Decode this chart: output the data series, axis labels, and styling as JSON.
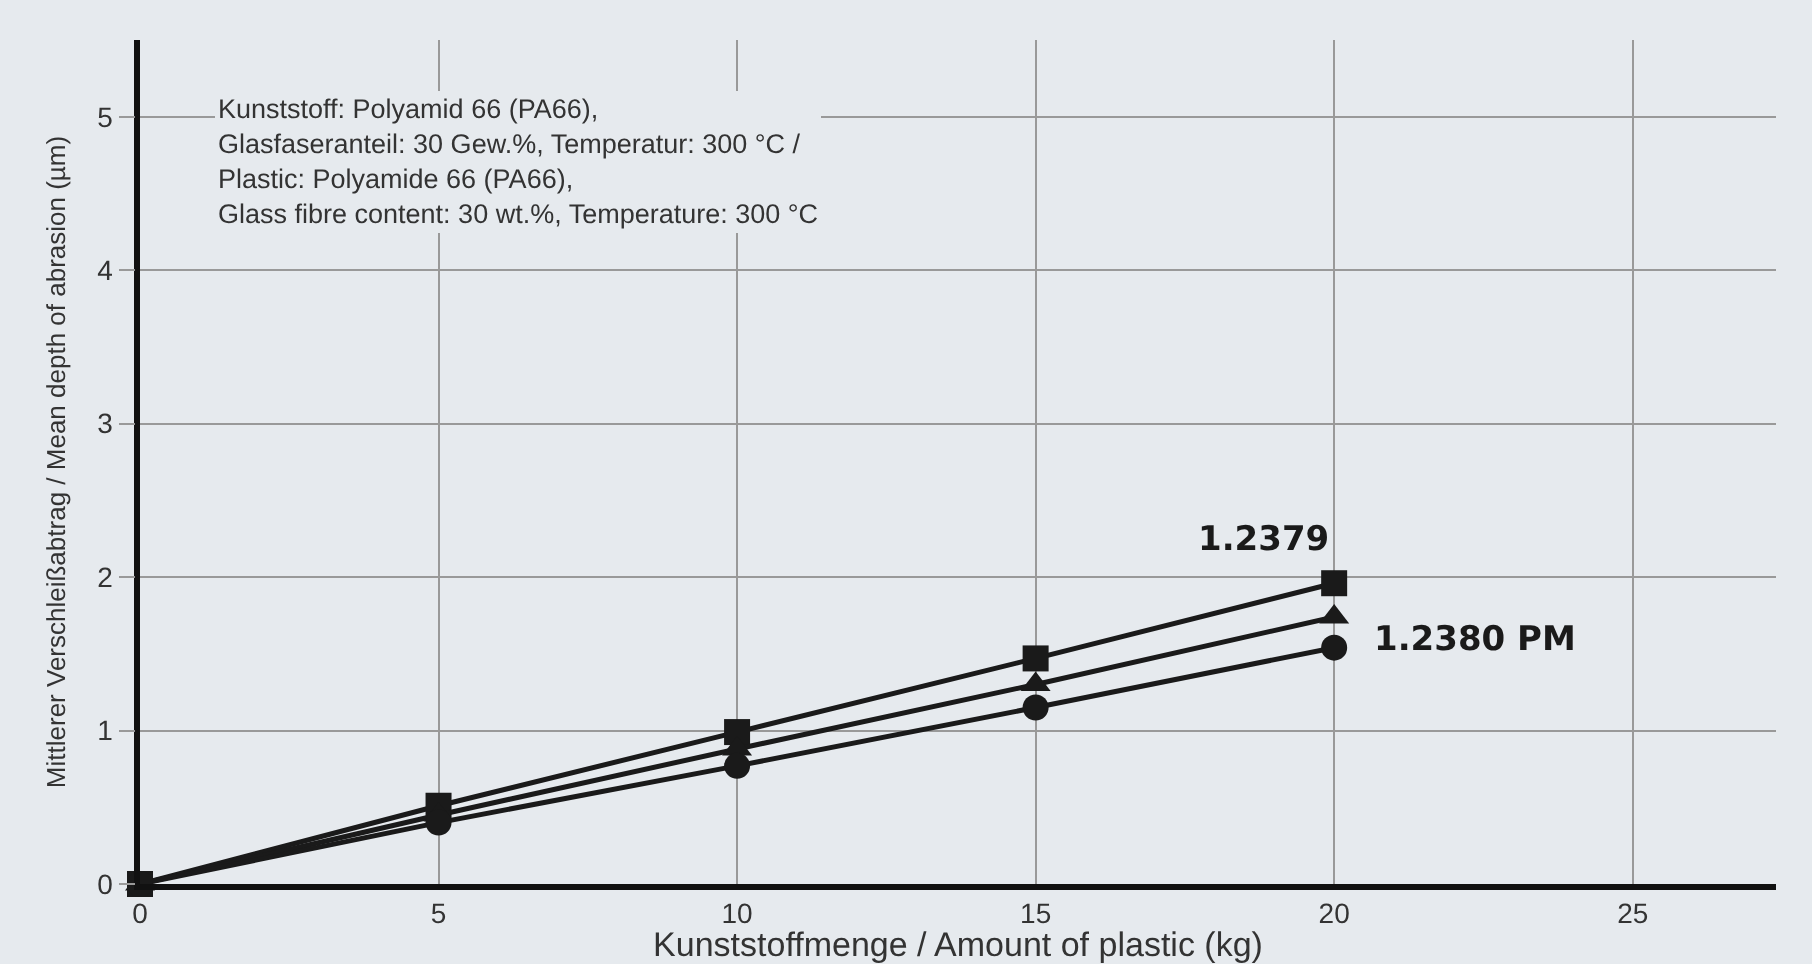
{
  "chart_data": {
    "type": "line",
    "xlabel": "Kunststoffmenge / Amount of plastic (kg)",
    "ylabel": "Mittlerer Verschleißabtrag / Mean depth of abrasion (µm)",
    "x": [
      0,
      5,
      10,
      15,
      20
    ],
    "series": [
      {
        "name": "1.2379",
        "color": "#1a1a1a",
        "marker": "square",
        "values": [
          0,
          0.51,
          0.99,
          1.47,
          1.96
        ]
      },
      {
        "name": "1.2380 PM",
        "color": "#1a1a1a",
        "marker": "triangle",
        "values": [
          0,
          0.45,
          0.88,
          1.3,
          1.74
        ]
      },
      {
        "color": "#1a1a1a",
        "marker": "circle",
        "values": [
          0,
          0.4,
          0.77,
          1.15,
          1.54
        ]
      }
    ],
    "xlim": [
      0,
      27.4
    ],
    "xticks": [
      0,
      5,
      10,
      15,
      20,
      25
    ],
    "ylim": [
      0,
      5.5
    ],
    "yticks": [
      0,
      1,
      2,
      3,
      4,
      5
    ],
    "grid": true,
    "legend": false,
    "line_style": "solid",
    "annotations": [
      "Kunststoff: Polyamid 66 (PA66),",
      "Glasfaseranteil: 30 Gew.%, Temperatur: 300 °C /",
      "Plastic: Polyamide 66 (PA66),",
      "Glass fibre content: 30 wt.%, Temperature: 300 °C"
    ]
  }
}
